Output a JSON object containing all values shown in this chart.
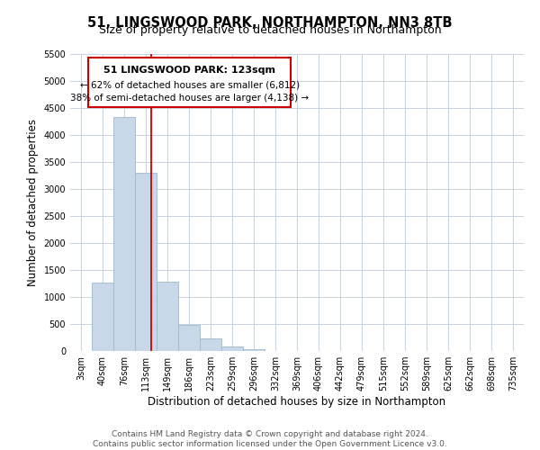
{
  "title": "51, LINGSWOOD PARK, NORTHAMPTON, NN3 8TB",
  "subtitle": "Size of property relative to detached houses in Northampton",
  "xlabel": "Distribution of detached houses by size in Northampton",
  "ylabel": "Number of detached properties",
  "bar_labels": [
    "3sqm",
    "40sqm",
    "76sqm",
    "113sqm",
    "149sqm",
    "186sqm",
    "223sqm",
    "259sqm",
    "296sqm",
    "332sqm",
    "369sqm",
    "406sqm",
    "442sqm",
    "479sqm",
    "515sqm",
    "552sqm",
    "589sqm",
    "625sqm",
    "662sqm",
    "698sqm",
    "735sqm"
  ],
  "bar_values": [
    0,
    1270,
    4330,
    3300,
    1290,
    480,
    240,
    80,
    40,
    0,
    0,
    0,
    0,
    0,
    0,
    0,
    0,
    0,
    0,
    0,
    0
  ],
  "bar_color": "#c8d8e8",
  "bar_edgecolor": "#a0b8cc",
  "property_line_index": 3.27,
  "vline_color": "#cc0000",
  "annotation_title": "51 LINGSWOOD PARK: 123sqm",
  "annotation_line1": "← 62% of detached houses are smaller (6,812)",
  "annotation_line2": "38% of semi-detached houses are larger (4,138) →",
  "annotation_box_color": "#ffffff",
  "annotation_box_edgecolor": "#cc0000",
  "ylim": [
    0,
    5500
  ],
  "yticks": [
    0,
    500,
    1000,
    1500,
    2000,
    2500,
    3000,
    3500,
    4000,
    4500,
    5000,
    5500
  ],
  "footer_line1": "Contains HM Land Registry data © Crown copyright and database right 2024.",
  "footer_line2": "Contains public sector information licensed under the Open Government Licence v3.0.",
  "bg_color": "#ffffff",
  "grid_color": "#c0ccd8",
  "title_fontsize": 10.5,
  "subtitle_fontsize": 9,
  "axis_label_fontsize": 8.5,
  "tick_fontsize": 7,
  "annotation_title_fontsize": 8,
  "annotation_text_fontsize": 7.5,
  "footer_fontsize": 6.5
}
